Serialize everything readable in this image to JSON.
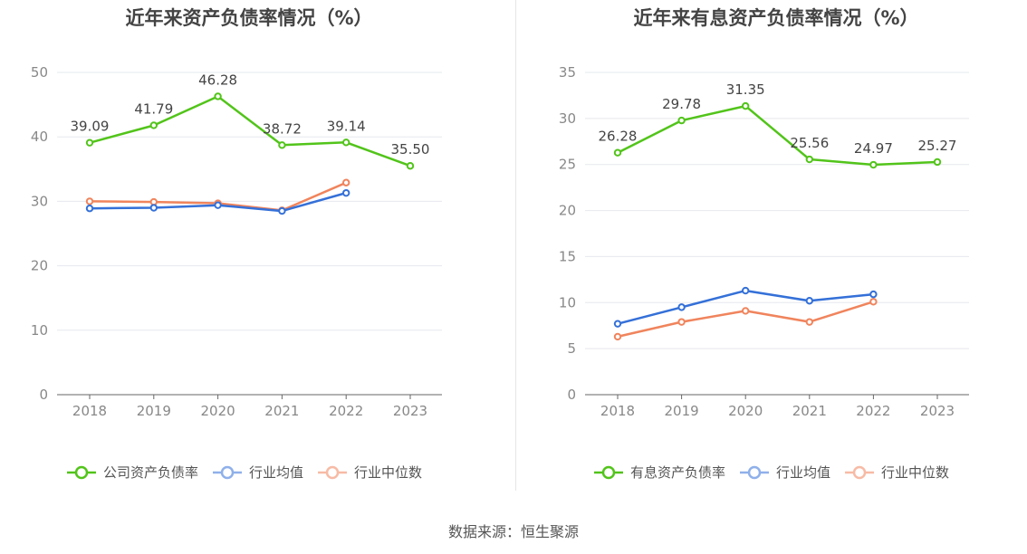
{
  "source": "数据来源：恒生聚源",
  "chart_data": [
    {
      "type": "line",
      "title": "近年来资产负债率情况（%）",
      "categories": [
        "2018",
        "2019",
        "2020",
        "2021",
        "2022",
        "2023"
      ],
      "ylim": [
        0,
        50
      ],
      "yticks": [
        0,
        10,
        20,
        30,
        40,
        50
      ],
      "grid": true,
      "legend_position": "bottom",
      "series": [
        {
          "name": "公司资产负债率",
          "color": "#52c41a",
          "values": [
            39.09,
            41.79,
            46.28,
            38.72,
            39.14,
            35.5
          ],
          "labels": [
            "39.09",
            "41.79",
            "46.28",
            "38.72",
            "39.14",
            "35.50"
          ]
        },
        {
          "name": "行业均值",
          "color": "#3470d8",
          "values": [
            28.9,
            29.0,
            29.4,
            28.5,
            31.3,
            null
          ]
        },
        {
          "name": "行业中位数",
          "color": "#f0845c",
          "values": [
            30.0,
            29.9,
            29.7,
            28.6,
            32.9,
            null
          ]
        }
      ]
    },
    {
      "type": "line",
      "title": "近年来有息资产负债率情况（%）",
      "categories": [
        "2018",
        "2019",
        "2020",
        "2021",
        "2022",
        "2023"
      ],
      "ylim": [
        0,
        35
      ],
      "yticks": [
        0,
        5,
        10,
        15,
        20,
        25,
        30,
        35
      ],
      "grid": true,
      "legend_position": "bottom",
      "series": [
        {
          "name": "有息资产负债率",
          "color": "#52c41a",
          "values": [
            26.28,
            29.78,
            31.35,
            25.56,
            24.97,
            25.27
          ],
          "labels": [
            "26.28",
            "29.78",
            "31.35",
            "25.56",
            "24.97",
            "25.27"
          ]
        },
        {
          "name": "行业均值",
          "color": "#3470d8",
          "values": [
            7.7,
            9.5,
            11.3,
            10.2,
            10.9,
            null
          ]
        },
        {
          "name": "行业中位数",
          "color": "#f0845c",
          "values": [
            6.3,
            7.9,
            9.1,
            7.9,
            10.1,
            null
          ]
        }
      ]
    }
  ]
}
